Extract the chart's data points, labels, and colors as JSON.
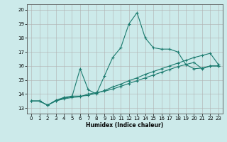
{
  "xlabel": "Humidex (Indice chaleur)",
  "bg_color": "#cceaea",
  "grid_color": "#aaaaaa",
  "line_color": "#1a7a6e",
  "xlim": [
    -0.5,
    23.5
  ],
  "ylim": [
    12.6,
    20.4
  ],
  "xticks": [
    0,
    1,
    2,
    3,
    4,
    5,
    6,
    7,
    8,
    9,
    10,
    11,
    12,
    13,
    14,
    15,
    16,
    17,
    18,
    19,
    20,
    21,
    22,
    23
  ],
  "yticks": [
    13,
    14,
    15,
    16,
    17,
    18,
    19,
    20
  ],
  "line1_x": [
    0,
    1,
    2,
    3,
    4,
    5,
    6,
    7,
    8,
    9,
    10,
    11,
    12,
    13,
    14,
    15,
    16,
    17,
    18,
    19,
    20,
    21,
    22,
    23
  ],
  "line1_y": [
    13.5,
    13.5,
    13.2,
    13.5,
    13.7,
    13.8,
    15.8,
    14.3,
    14.0,
    15.3,
    16.6,
    17.3,
    19.0,
    19.8,
    18.0,
    17.3,
    17.2,
    17.2,
    17.0,
    16.1,
    15.8,
    15.85,
    16.0,
    16.0
  ],
  "line2_x": [
    0,
    1,
    2,
    3,
    4,
    5,
    6,
    7,
    8,
    9,
    10,
    11,
    12,
    13,
    14,
    15,
    16,
    17,
    18,
    19,
    20,
    21,
    22,
    23
  ],
  "line2_y": [
    13.5,
    13.5,
    13.2,
    13.55,
    13.75,
    13.85,
    13.85,
    13.9,
    14.05,
    14.25,
    14.5,
    14.7,
    14.95,
    15.15,
    15.4,
    15.6,
    15.8,
    16.0,
    16.2,
    16.4,
    16.6,
    16.75,
    16.9,
    16.1
  ],
  "line3_x": [
    0,
    1,
    2,
    3,
    4,
    5,
    6,
    7,
    8,
    9,
    10,
    11,
    12,
    13,
    14,
    15,
    16,
    17,
    18,
    19,
    20,
    21,
    22,
    23
  ],
  "line3_y": [
    13.5,
    13.5,
    13.2,
    13.5,
    13.65,
    13.75,
    13.8,
    14.0,
    14.1,
    14.2,
    14.35,
    14.55,
    14.75,
    14.95,
    15.15,
    15.35,
    15.55,
    15.75,
    15.95,
    16.1,
    16.25,
    15.8,
    16.0,
    16.0
  ]
}
